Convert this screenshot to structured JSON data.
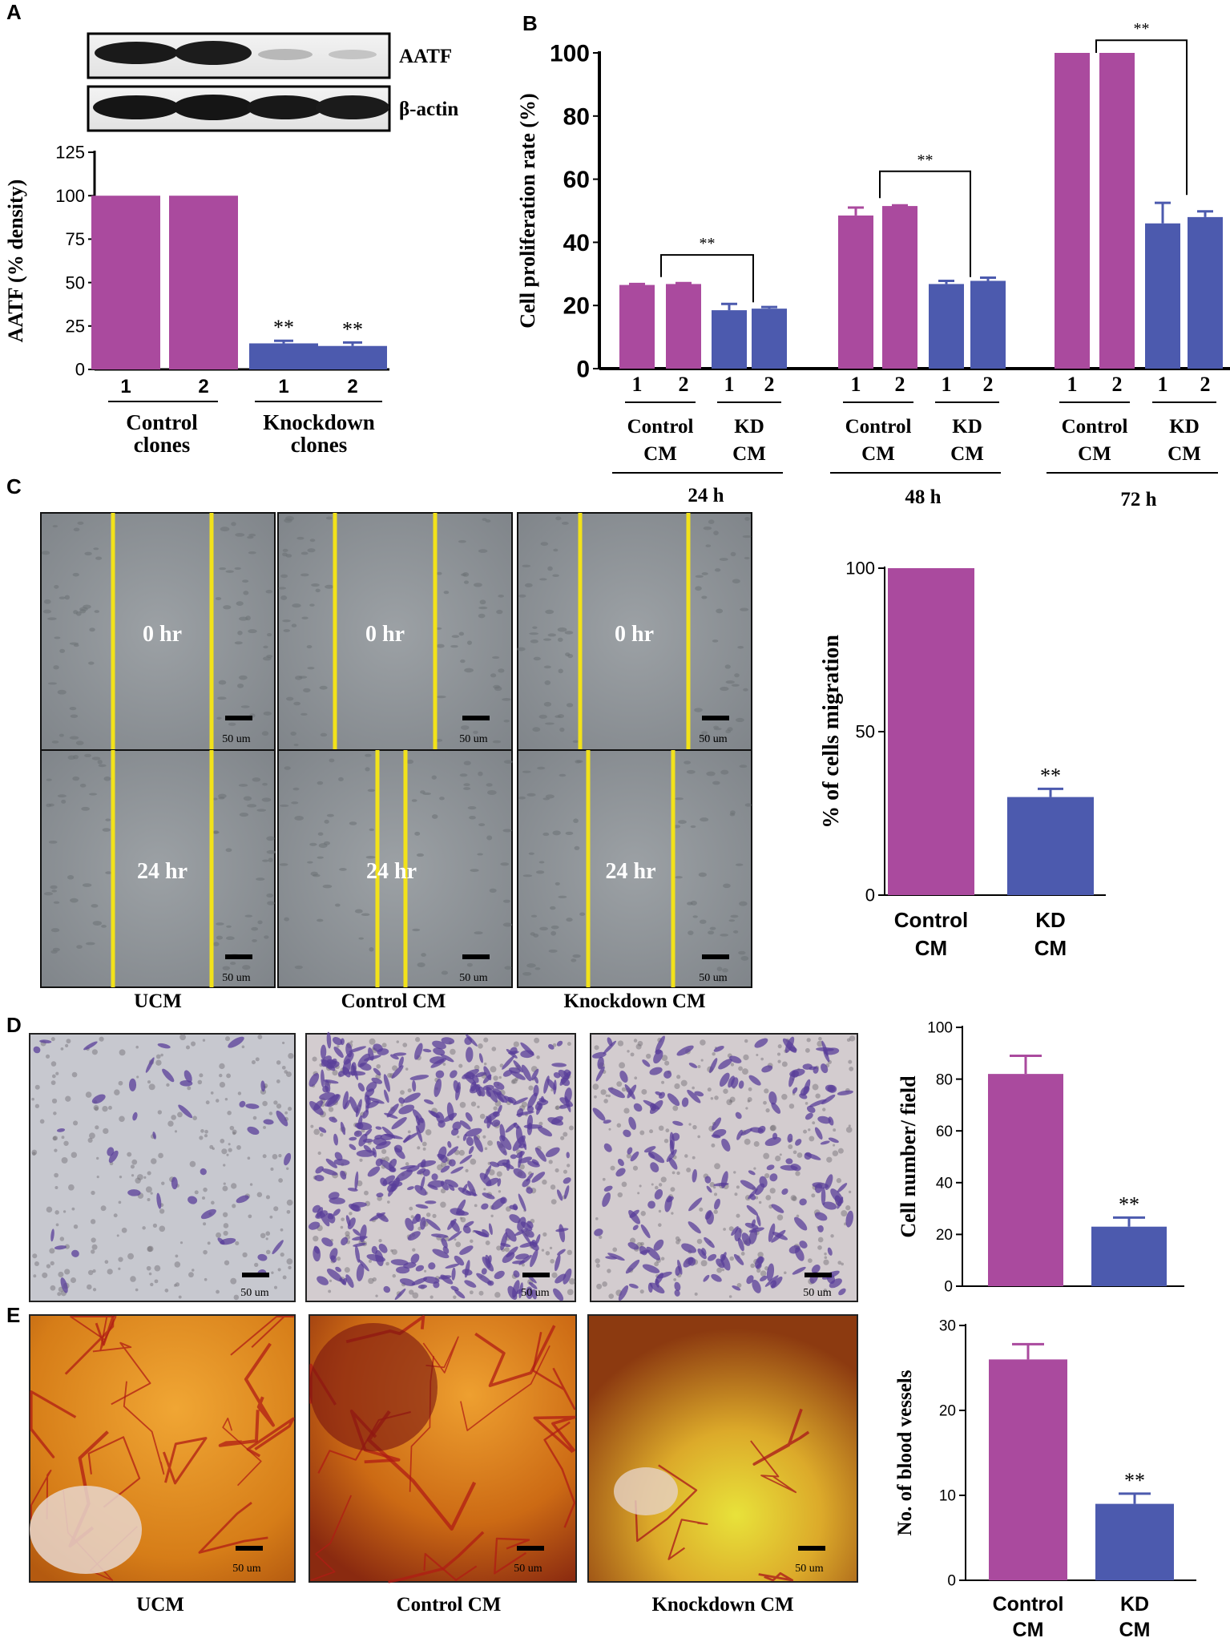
{
  "colors": {
    "control": "#aa4a9e",
    "knockdown": "#4c5aae",
    "scratch_line": "#f2e21a",
    "micrograph_bg": "#8d9296",
    "invasion_bg": "#c8c4c8",
    "cam_bg": "#d78a20"
  },
  "panel_labels": {
    "a": "A",
    "b": "B",
    "c": "C",
    "d": "D",
    "e": "E"
  },
  "panel_a": {
    "blot_labels": [
      "AATF",
      "β-actin"
    ],
    "group_labels": [
      "Control\nclones",
      "Knockdown\nclones"
    ],
    "sig": "**"
  },
  "panel_b": {
    "cm_labels": [
      "Control\nCM",
      "KD\nCM"
    ],
    "time_labels": [
      "24 h",
      "48 h",
      "72 h"
    ],
    "sig": "**"
  },
  "panel_c": {
    "time_labels": [
      "0 hr",
      "24 hr"
    ],
    "column_labels": [
      "UCM",
      "Control CM",
      "Knockdown CM"
    ],
    "scale_label": "50 um",
    "sig": "**"
  },
  "panel_d": {
    "scale_label": "50 um",
    "sig": "**"
  },
  "panel_e": {
    "column_labels": [
      "UCM",
      "Control CM",
      "Knockdown CM"
    ],
    "scale_label": "50 um",
    "sig": "**"
  },
  "chart_data": [
    {
      "panel": "A",
      "type": "bar",
      "categories": [
        "1",
        "2",
        "1",
        "2"
      ],
      "groups": [
        "Control\nclones",
        "Knockdown\nclones"
      ],
      "values": [
        100,
        100,
        15,
        13.5
      ],
      "errors": [
        0,
        0,
        1.5,
        2
      ],
      "significance": [
        "",
        "",
        "**",
        "**"
      ],
      "ylabel": "AATF (% density)",
      "ylim": [
        0,
        125
      ],
      "yticks": [
        0,
        25,
        50,
        75,
        100,
        125
      ]
    },
    {
      "panel": "B",
      "type": "bar",
      "categories": [
        "1",
        "2",
        "1",
        "2",
        "1",
        "2",
        "1",
        "2",
        "1",
        "2",
        "1",
        "2"
      ],
      "groups": [
        "24 h",
        "48 h",
        "72 h"
      ],
      "values": [
        26.5,
        26.8,
        18.5,
        19,
        48.5,
        51.5,
        26.8,
        27.8,
        100,
        100,
        46,
        48
      ],
      "errors": [
        0.3,
        0.3,
        2,
        0.5,
        2.5,
        0.2,
        1,
        1,
        0,
        0,
        6.5,
        1.8
      ],
      "ylabel": "Cell proliferation rate (%)",
      "ylim": [
        0,
        100
      ],
      "yticks": [
        0,
        20,
        40,
        60,
        80,
        100
      ]
    },
    {
      "panel": "C",
      "type": "bar",
      "categories": [
        "Control\nCM",
        "KD\nCM"
      ],
      "values": [
        100,
        30
      ],
      "errors": [
        0,
        2.5
      ],
      "significance": [
        "",
        "**"
      ],
      "ylabel": "% of cells  migration",
      "ylim": [
        0,
        100
      ],
      "yticks": [
        0,
        50,
        100
      ]
    },
    {
      "panel": "D",
      "type": "bar",
      "categories": [
        "Control\nCM",
        "KD\nCM"
      ],
      "values": [
        82,
        23
      ],
      "errors": [
        7,
        3.5
      ],
      "significance": [
        "",
        "**"
      ],
      "ylabel": "Cell number/ field",
      "ylim": [
        0,
        100
      ],
      "yticks": [
        0,
        20,
        40,
        60,
        80,
        100
      ]
    },
    {
      "panel": "E",
      "type": "bar",
      "categories": [
        "Control\nCM",
        "KD\nCM"
      ],
      "values": [
        26,
        9
      ],
      "errors": [
        1.8,
        1.2
      ],
      "significance": [
        "",
        "**"
      ],
      "ylabel": "No. of blood vessels",
      "ylim": [
        0,
        30
      ],
      "yticks": [
        0,
        10,
        20,
        30
      ]
    }
  ]
}
